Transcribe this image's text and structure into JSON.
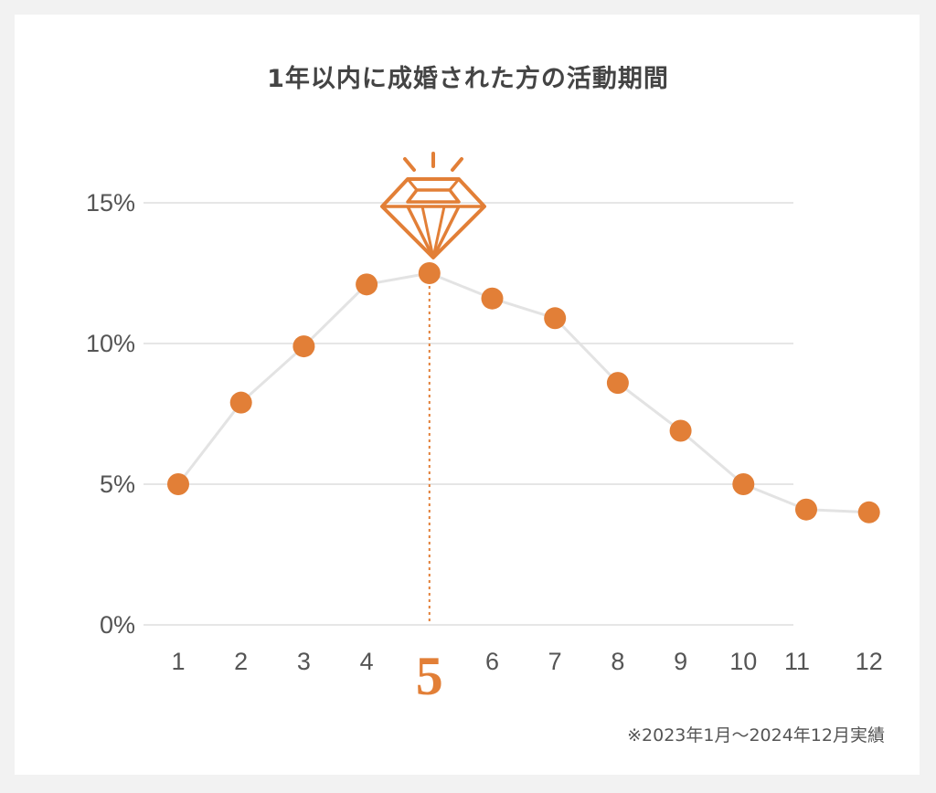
{
  "title": "1年以内に成婚された方の活動期間",
  "footnote": "※2023年1月〜2024年12月実績",
  "colors": {
    "accent": "#e27f37",
    "line": "#e3e3e3",
    "grid": "#e6e6e6",
    "text": "#555555"
  },
  "highlight": {
    "category": "5",
    "icon": "diamond-icon"
  },
  "chart_data": {
    "type": "line",
    "title": "1年以内に成婚された方の活動期間",
    "xlabel": "",
    "ylabel": "",
    "categories": [
      "1",
      "2",
      "3",
      "4",
      "5",
      "6",
      "7",
      "8",
      "9",
      "10",
      "11",
      "12"
    ],
    "values": [
      5.0,
      7.9,
      9.9,
      12.1,
      12.5,
      11.6,
      10.9,
      8.6,
      6.9,
      5.0,
      4.1,
      4.0
    ],
    "ylim": [
      0,
      15
    ],
    "yticks": [
      0,
      5,
      10,
      15
    ],
    "ytick_labels": [
      "0%",
      "5%",
      "10%",
      "15%"
    ],
    "grid": true,
    "legend": "none"
  }
}
